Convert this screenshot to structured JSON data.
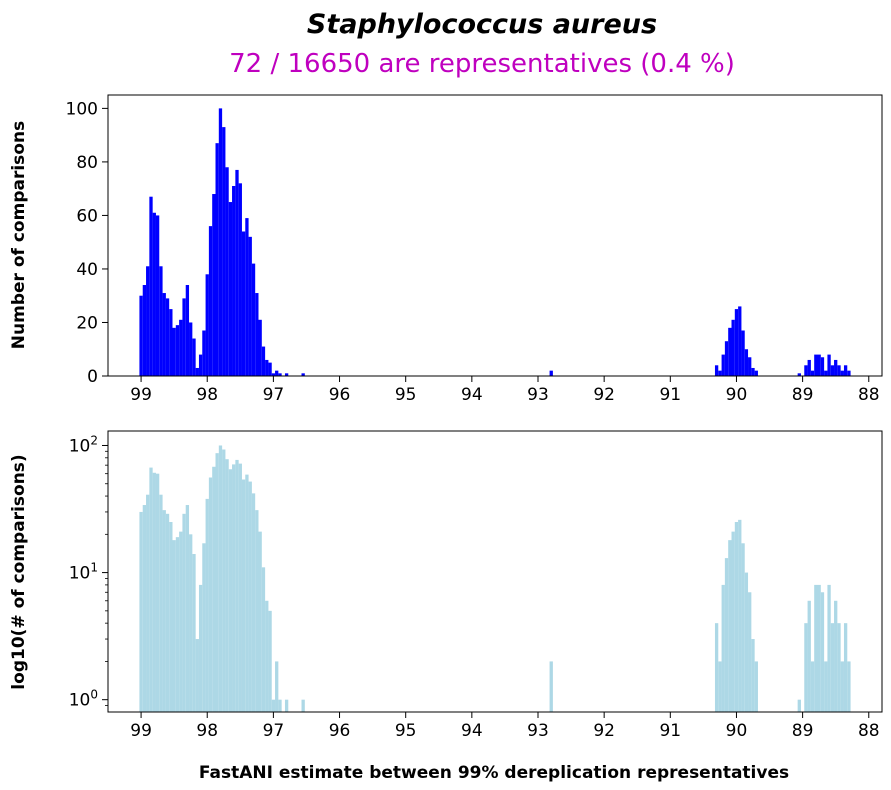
{
  "figure": {
    "title": "Staphylococcus aureus",
    "subtitle": "72 / 16650 are representatives (0.4 %)",
    "title_color": "#000000",
    "subtitle_color": "#bf00bf",
    "xlabel": "FastANI estimate between 99% dereplication representatives"
  },
  "chart_data": [
    {
      "type": "bar",
      "ylabel": "Number of comparisons",
      "bar_color": "#0000ff",
      "x_reversed": true,
      "xlim": [
        99.5,
        87.8
      ],
      "ylim": [
        0,
        105
      ],
      "xticks": [
        99,
        98,
        97,
        96,
        95,
        94,
        93,
        92,
        91,
        90,
        89,
        88
      ],
      "yticks": [
        0,
        20,
        40,
        60,
        80,
        100
      ],
      "bin_width": 0.05,
      "bins": [
        [
          99.0,
          30
        ],
        [
          98.95,
          34
        ],
        [
          98.9,
          41
        ],
        [
          98.85,
          67
        ],
        [
          98.8,
          61
        ],
        [
          98.75,
          60
        ],
        [
          98.7,
          41
        ],
        [
          98.65,
          31
        ],
        [
          98.6,
          29
        ],
        [
          98.55,
          25
        ],
        [
          98.5,
          18
        ],
        [
          98.45,
          19
        ],
        [
          98.4,
          21
        ],
        [
          98.35,
          29
        ],
        [
          98.3,
          34
        ],
        [
          98.25,
          20
        ],
        [
          98.2,
          14
        ],
        [
          98.15,
          3
        ],
        [
          98.1,
          8
        ],
        [
          98.05,
          17
        ],
        [
          98.0,
          38
        ],
        [
          97.95,
          56
        ],
        [
          97.9,
          68
        ],
        [
          97.85,
          87
        ],
        [
          97.8,
          100
        ],
        [
          97.75,
          93
        ],
        [
          97.7,
          78
        ],
        [
          97.65,
          65
        ],
        [
          97.6,
          71
        ],
        [
          97.55,
          77
        ],
        [
          97.5,
          72
        ],
        [
          97.45,
          54
        ],
        [
          97.4,
          59
        ],
        [
          97.35,
          52
        ],
        [
          97.3,
          42
        ],
        [
          97.25,
          31
        ],
        [
          97.2,
          21
        ],
        [
          97.15,
          11
        ],
        [
          97.1,
          6
        ],
        [
          97.05,
          5
        ],
        [
          97.0,
          1
        ],
        [
          96.95,
          2
        ],
        [
          96.9,
          1
        ],
        [
          96.8,
          1
        ],
        [
          96.55,
          1
        ],
        [
          92.8,
          2
        ],
        [
          90.3,
          4
        ],
        [
          90.25,
          2
        ],
        [
          90.2,
          8
        ],
        [
          90.15,
          13
        ],
        [
          90.1,
          18
        ],
        [
          90.05,
          21
        ],
        [
          90.0,
          25
        ],
        [
          89.95,
          26
        ],
        [
          89.9,
          17
        ],
        [
          89.85,
          10
        ],
        [
          89.8,
          7
        ],
        [
          89.75,
          3
        ],
        [
          89.7,
          2
        ],
        [
          89.05,
          1
        ],
        [
          88.95,
          4
        ],
        [
          88.9,
          6
        ],
        [
          88.85,
          2
        ],
        [
          88.8,
          8
        ],
        [
          88.75,
          8
        ],
        [
          88.7,
          7
        ],
        [
          88.65,
          2
        ],
        [
          88.6,
          8
        ],
        [
          88.55,
          4
        ],
        [
          88.5,
          6
        ],
        [
          88.45,
          4
        ],
        [
          88.4,
          2
        ],
        [
          88.35,
          4
        ],
        [
          88.3,
          2
        ]
      ]
    },
    {
      "type": "bar",
      "ylabel": "log10(# of comparisons)",
      "bar_color": "#add8e6",
      "x_reversed": true,
      "y_scale": "log",
      "xlim": [
        99.5,
        87.8
      ],
      "ylim": [
        0.8,
        130
      ],
      "xticks": [
        99,
        98,
        97,
        96,
        95,
        94,
        93,
        92,
        91,
        90,
        89,
        88
      ],
      "yticks": [
        {
          "value": 1,
          "base": "10",
          "exp": "0"
        },
        {
          "value": 10,
          "base": "10",
          "exp": "1"
        },
        {
          "value": 100,
          "base": "10",
          "exp": "2"
        }
      ],
      "bin_width": 0.05,
      "bins": [
        [
          99.0,
          30
        ],
        [
          98.95,
          34
        ],
        [
          98.9,
          41
        ],
        [
          98.85,
          67
        ],
        [
          98.8,
          61
        ],
        [
          98.75,
          60
        ],
        [
          98.7,
          41
        ],
        [
          98.65,
          31
        ],
        [
          98.6,
          29
        ],
        [
          98.55,
          25
        ],
        [
          98.5,
          18
        ],
        [
          98.45,
          19
        ],
        [
          98.4,
          21
        ],
        [
          98.35,
          29
        ],
        [
          98.3,
          34
        ],
        [
          98.25,
          20
        ],
        [
          98.2,
          14
        ],
        [
          98.15,
          3
        ],
        [
          98.1,
          8
        ],
        [
          98.05,
          17
        ],
        [
          98.0,
          38
        ],
        [
          97.95,
          56
        ],
        [
          97.9,
          68
        ],
        [
          97.85,
          87
        ],
        [
          97.8,
          100
        ],
        [
          97.75,
          93
        ],
        [
          97.7,
          78
        ],
        [
          97.65,
          65
        ],
        [
          97.6,
          71
        ],
        [
          97.55,
          77
        ],
        [
          97.5,
          72
        ],
        [
          97.45,
          54
        ],
        [
          97.4,
          59
        ],
        [
          97.35,
          52
        ],
        [
          97.3,
          42
        ],
        [
          97.25,
          31
        ],
        [
          97.2,
          21
        ],
        [
          97.15,
          11
        ],
        [
          97.1,
          6
        ],
        [
          97.05,
          5
        ],
        [
          97.0,
          1
        ],
        [
          96.95,
          2
        ],
        [
          96.9,
          1
        ],
        [
          96.8,
          1
        ],
        [
          96.55,
          1
        ],
        [
          92.8,
          2
        ],
        [
          90.3,
          4
        ],
        [
          90.25,
          2
        ],
        [
          90.2,
          8
        ],
        [
          90.15,
          13
        ],
        [
          90.1,
          18
        ],
        [
          90.05,
          21
        ],
        [
          90.0,
          25
        ],
        [
          89.95,
          26
        ],
        [
          89.9,
          17
        ],
        [
          89.85,
          10
        ],
        [
          89.8,
          7
        ],
        [
          89.75,
          3
        ],
        [
          89.7,
          2
        ],
        [
          89.05,
          1
        ],
        [
          88.95,
          4
        ],
        [
          88.9,
          6
        ],
        [
          88.85,
          2
        ],
        [
          88.8,
          8
        ],
        [
          88.75,
          8
        ],
        [
          88.7,
          7
        ],
        [
          88.65,
          2
        ],
        [
          88.6,
          8
        ],
        [
          88.55,
          4
        ],
        [
          88.5,
          6
        ],
        [
          88.45,
          4
        ],
        [
          88.4,
          2
        ],
        [
          88.35,
          4
        ],
        [
          88.3,
          2
        ]
      ]
    }
  ]
}
